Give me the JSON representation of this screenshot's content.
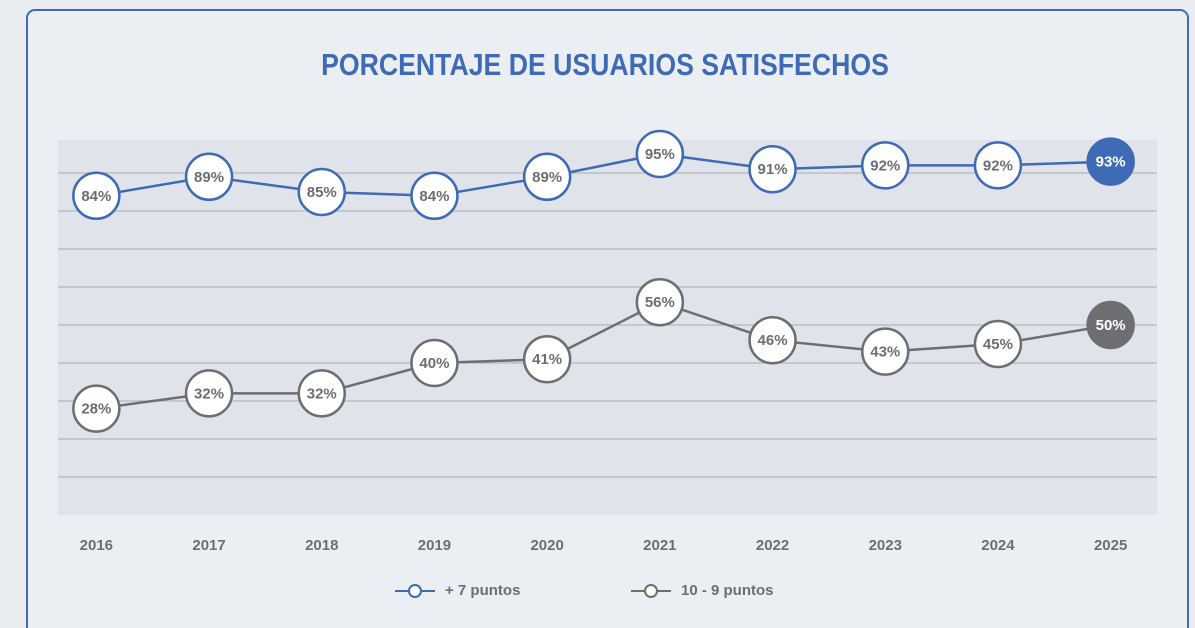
{
  "chart_data": {
    "type": "line",
    "title": "PORCENTAJE DE USUARIOS SATISFECHOS",
    "categories": [
      "2016",
      "2017",
      "2018",
      "2019",
      "2020",
      "2021",
      "2022",
      "2023",
      "2024",
      "2025"
    ],
    "series": [
      {
        "name": "+ 7 puntos",
        "color": "#3f6ab5",
        "values": [
          84,
          89,
          85,
          84,
          89,
          95,
          91,
          92,
          92,
          93
        ],
        "value_labels": [
          "84%",
          "89%",
          "85%",
          "84%",
          "89%",
          "95%",
          "91%",
          "92%",
          "92%",
          "93%"
        ]
      },
      {
        "name": "10 - 9 puntos",
        "color": "#6d6e71",
        "values": [
          28,
          32,
          32,
          40,
          41,
          56,
          46,
          43,
          45,
          50
        ],
        "value_labels": [
          "28%",
          "32%",
          "32%",
          "40%",
          "41%",
          "56%",
          "46%",
          "43%",
          "45%",
          "50%"
        ]
      }
    ],
    "ylim": [
      0,
      100
    ],
    "yticks": [
      10,
      20,
      30,
      40,
      50,
      60,
      70,
      80,
      90
    ],
    "grid": true,
    "highlight_last": true,
    "legend": "bottom"
  }
}
